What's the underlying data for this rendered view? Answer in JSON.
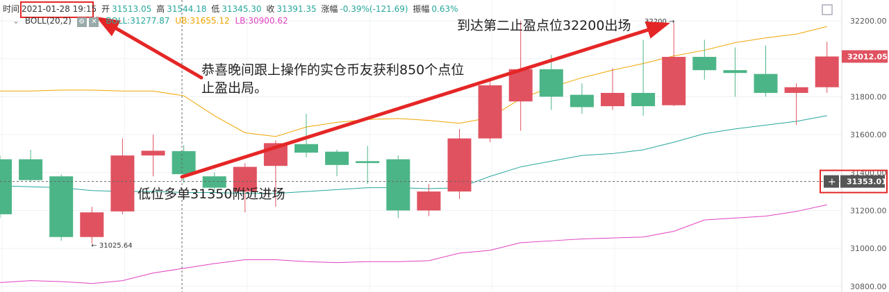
{
  "header": {
    "time_label": "时间",
    "time_value": "2021-01-28 19:15",
    "open_label": "开",
    "open_value": "31513.05",
    "high_label": "高",
    "high_value": "31544.18",
    "low_label": "低",
    "low_value": "31345.30",
    "close_label": "收",
    "close_value": "31391.35",
    "change_label": "涨幅",
    "change_value": "-0.39%(-121.69)",
    "amp_label": "振幅",
    "amp_value": "0.63%"
  },
  "indicator": {
    "name": "BOLL(20,2)",
    "ll_label": "BOLL",
    "ll_value": "31277.87",
    "ub_label": "UB",
    "ub_value": "31655.12",
    "lb_label": "LB",
    "lb_value": "30900.62",
    "mid_color": "#26a69a",
    "ub_color": "#f0a500",
    "lb_color": "#e040c0"
  },
  "annotations": {
    "profit": "恭喜晚间跟上操作的实仓币友获利850个点位",
    "profit_line2": "止盈出局。",
    "target": "到达第二止盈点位32200出场",
    "entry": "低位多单31350附近进场"
  },
  "colors": {
    "up": "#e05260",
    "down": "#4cb587",
    "arrow": "#e52626",
    "box": "#e52626"
  },
  "chart_data": {
    "type": "candlestick",
    "ylim": [
      30770,
      32310
    ],
    "yticks": [
      "32200.00",
      "32000.00",
      "31800.00",
      "31600.00",
      "31400.00",
      "31200.00",
      "31000.00",
      "30800.00"
    ],
    "ytick_values": [
      32200,
      32000,
      31800,
      31600,
      31400,
      31200,
      31000,
      30800
    ],
    "last_price": "32012.05",
    "last_price_value": 32012.05,
    "crosshair_price": "31353.01",
    "crosshair_value": 31353.01,
    "low_marker": "← 31025.64",
    "high_marker": "32200 →",
    "candles": [
      {
        "o": 31470,
        "c": 31180,
        "h": 31490,
        "l": 31160
      },
      {
        "o": 31470,
        "c": 31360,
        "h": 31520,
        "l": 31350
      },
      {
        "o": 31380,
        "c": 31060,
        "h": 31390,
        "l": 31040
      },
      {
        "o": 31060,
        "c": 31190,
        "h": 31220,
        "l": 31025.64
      },
      {
        "o": 31195,
        "c": 31490,
        "h": 31580,
        "l": 31180
      },
      {
        "o": 31490,
        "c": 31515,
        "h": 31600,
        "l": 31380
      },
      {
        "o": 31513.05,
        "c": 31391.35,
        "h": 31544.18,
        "l": 31345.3
      },
      {
        "o": 31380,
        "c": 31320,
        "h": 31400,
        "l": 31300
      },
      {
        "o": 31300,
        "c": 31430,
        "h": 31450,
        "l": 31190
      },
      {
        "o": 31435,
        "c": 31555,
        "h": 31570,
        "l": 31220
      },
      {
        "o": 31550,
        "c": 31505,
        "h": 31710,
        "l": 31480
      },
      {
        "o": 31510,
        "c": 31440,
        "h": 31520,
        "l": 31380
      },
      {
        "o": 31460,
        "c": 31450,
        "h": 31540,
        "l": 31340
      },
      {
        "o": 31470,
        "c": 31200,
        "h": 31490,
        "l": 31160
      },
      {
        "o": 31200,
        "c": 31300,
        "h": 31340,
        "l": 31170
      },
      {
        "o": 31300,
        "c": 31580,
        "h": 31630,
        "l": 31260
      },
      {
        "o": 31580,
        "c": 31860,
        "h": 31880,
        "l": 31560
      },
      {
        "o": 31775,
        "c": 31945,
        "h": 32200,
        "l": 31620
      },
      {
        "o": 31945,
        "c": 31800,
        "h": 32020,
        "l": 31730
      },
      {
        "o": 31810,
        "c": 31745,
        "h": 31870,
        "l": 31710
      },
      {
        "o": 31750,
        "c": 31820,
        "h": 31950,
        "l": 31730
      },
      {
        "o": 31820,
        "c": 31750,
        "h": 32100,
        "l": 31700
      },
      {
        "o": 31755,
        "c": 32010,
        "h": 32190,
        "l": 31750
      },
      {
        "o": 32010,
        "c": 31940,
        "h": 32100,
        "l": 31890
      },
      {
        "o": 31940,
        "c": 31925,
        "h": 32060,
        "l": 31800
      },
      {
        "o": 31920,
        "c": 31820,
        "h": 32070,
        "l": 31800
      },
      {
        "o": 31820,
        "c": 31850,
        "h": 31870,
        "l": 31650
      },
      {
        "o": 31850,
        "c": 32012.05,
        "h": 32090,
        "l": 31820
      }
    ],
    "ub": [
      31830,
      31830,
      31835,
      31835,
      31830,
      31830,
      31805,
      31700,
      31610,
      31590,
      31640,
      31665,
      31680,
      31685,
      31675,
      31660,
      31690,
      31790,
      31850,
      31900,
      31940,
      31975,
      32015,
      32045,
      32085,
      32110,
      32130,
      32170
    ],
    "mid": [
      31330,
      31325,
      31320,
      31305,
      31300,
      31300,
      31295,
      31295,
      31290,
      31290,
      31300,
      31310,
      31320,
      31320,
      31315,
      31320,
      31380,
      31430,
      31460,
      31490,
      31500,
      31520,
      31560,
      31605,
      31630,
      31650,
      31670,
      31700
    ],
    "lb": [
      30820,
      30830,
      30825,
      30815,
      30830,
      30870,
      30895,
      30920,
      30940,
      30940,
      30930,
      30925,
      30930,
      30930,
      30935,
      30975,
      30990,
      31030,
      31040,
      31050,
      31055,
      31060,
      31090,
      31150,
      31160,
      31170,
      31195,
      31230
    ]
  }
}
